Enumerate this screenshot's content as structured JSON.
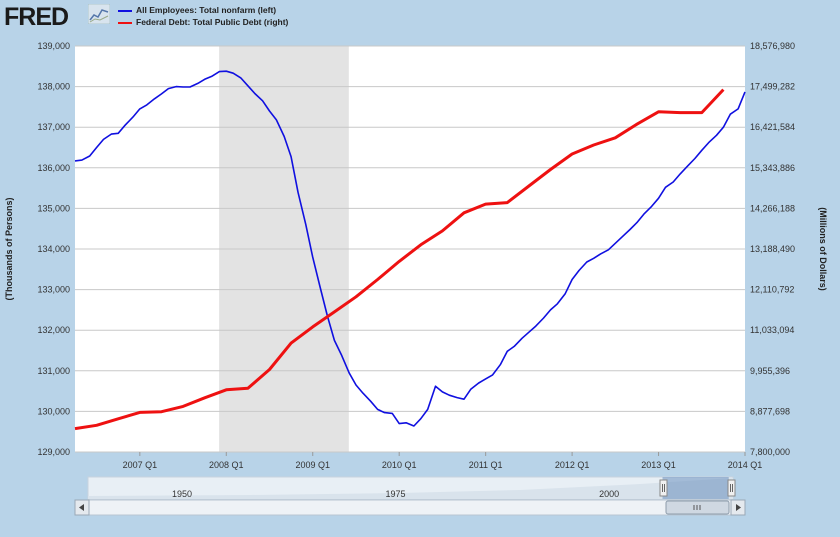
{
  "header": {
    "logo": "FRED",
    "logo_icon": "chart-line-icon"
  },
  "legend": [
    {
      "label": "All Employees: Total nonfarm (left)",
      "color": "#1010e0"
    },
    {
      "label": "Federal Debt: Total Public Debt (right)",
      "color": "#ee1111"
    }
  ],
  "chart_data": {
    "type": "line",
    "y_left_label": "(Thousands of Persons)",
    "y_right_label": "(Millions of Dollars)",
    "y_left_range": [
      129000,
      139000
    ],
    "y_right_range": [
      7800000,
      18576980
    ],
    "y_left_ticks": [
      "139,000",
      "138,000",
      "137,000",
      "136,000",
      "135,000",
      "134,000",
      "133,000",
      "132,000",
      "131,000",
      "130,000",
      "129,000"
    ],
    "y_right_ticks": [
      "18,576,980",
      "17,499,282",
      "16,421,584",
      "15,343,886",
      "14,266,188",
      "13,188,490",
      "12,110,792",
      "11,033,094",
      "9,955,396",
      "8,877,698",
      "7,800,000"
    ],
    "x_range": [
      2006.25,
      2014.0
    ],
    "x_ticks": [
      {
        "label": "2007 Q1",
        "value": 2007.0
      },
      {
        "label": "2008 Q1",
        "value": 2008.0
      },
      {
        "label": "2009 Q1",
        "value": 2009.0
      },
      {
        "label": "2010 Q1",
        "value": 2010.0
      },
      {
        "label": "2011 Q1",
        "value": 2011.0
      },
      {
        "label": "2012 Q1",
        "value": 2012.0
      },
      {
        "label": "2013 Q1",
        "value": 2013.0
      },
      {
        "label": "2014 Q1",
        "value": 2014.0
      }
    ],
    "recession": [
      2007.917,
      2009.417
    ],
    "grid": true,
    "series": [
      {
        "name": "All Employees: Total nonfarm (left)",
        "color": "#1010e0",
        "axis": "left",
        "points": [
          [
            2006.25,
            136170
          ],
          [
            2006.33,
            136190
          ],
          [
            2006.42,
            136290
          ],
          [
            2006.5,
            136500
          ],
          [
            2006.58,
            136700
          ],
          [
            2006.67,
            136830
          ],
          [
            2006.75,
            136850
          ],
          [
            2006.83,
            137050
          ],
          [
            2006.92,
            137250
          ],
          [
            2007.0,
            137450
          ],
          [
            2007.08,
            137550
          ],
          [
            2007.17,
            137700
          ],
          [
            2007.25,
            137820
          ],
          [
            2007.33,
            137950
          ],
          [
            2007.42,
            138000
          ],
          [
            2007.5,
            137990
          ],
          [
            2007.58,
            137990
          ],
          [
            2007.67,
            138080
          ],
          [
            2007.75,
            138180
          ],
          [
            2007.83,
            138250
          ],
          [
            2007.92,
            138370
          ],
          [
            2008.0,
            138380
          ],
          [
            2008.08,
            138330
          ],
          [
            2008.17,
            138210
          ],
          [
            2008.25,
            138020
          ],
          [
            2008.33,
            137830
          ],
          [
            2008.42,
            137650
          ],
          [
            2008.5,
            137400
          ],
          [
            2008.58,
            137180
          ],
          [
            2008.67,
            136770
          ],
          [
            2008.75,
            136270
          ],
          [
            2008.83,
            135400
          ],
          [
            2008.92,
            134600
          ],
          [
            2009.0,
            133800
          ],
          [
            2009.08,
            133100
          ],
          [
            2009.17,
            132350
          ],
          [
            2009.25,
            131750
          ],
          [
            2009.33,
            131400
          ],
          [
            2009.42,
            130950
          ],
          [
            2009.5,
            130650
          ],
          [
            2009.58,
            130450
          ],
          [
            2009.67,
            130250
          ],
          [
            2009.75,
            130050
          ],
          [
            2009.83,
            129970
          ],
          [
            2009.92,
            129950
          ],
          [
            2010.0,
            129700
          ],
          [
            2010.08,
            129720
          ],
          [
            2010.17,
            129640
          ],
          [
            2010.25,
            129820
          ],
          [
            2010.33,
            130050
          ],
          [
            2010.42,
            130620
          ],
          [
            2010.5,
            130480
          ],
          [
            2010.58,
            130400
          ],
          [
            2010.67,
            130340
          ],
          [
            2010.75,
            130300
          ],
          [
            2010.83,
            130550
          ],
          [
            2010.92,
            130700
          ],
          [
            2011.0,
            130800
          ],
          [
            2011.08,
            130900
          ],
          [
            2011.17,
            131150
          ],
          [
            2011.25,
            131480
          ],
          [
            2011.33,
            131600
          ],
          [
            2011.42,
            131800
          ],
          [
            2011.5,
            131950
          ],
          [
            2011.58,
            132100
          ],
          [
            2011.67,
            132300
          ],
          [
            2011.75,
            132500
          ],
          [
            2011.83,
            132650
          ],
          [
            2011.92,
            132900
          ],
          [
            2012.0,
            133250
          ],
          [
            2012.08,
            133470
          ],
          [
            2012.17,
            133680
          ],
          [
            2012.25,
            133770
          ],
          [
            2012.33,
            133880
          ],
          [
            2012.42,
            133980
          ],
          [
            2012.5,
            134140
          ],
          [
            2012.58,
            134300
          ],
          [
            2012.67,
            134480
          ],
          [
            2012.75,
            134650
          ],
          [
            2012.83,
            134860
          ],
          [
            2012.92,
            135050
          ],
          [
            2013.0,
            135250
          ],
          [
            2013.08,
            135520
          ],
          [
            2013.17,
            135650
          ],
          [
            2013.25,
            135850
          ],
          [
            2013.33,
            136030
          ],
          [
            2013.42,
            136230
          ],
          [
            2013.5,
            136430
          ],
          [
            2013.58,
            136620
          ],
          [
            2013.67,
            136800
          ],
          [
            2013.75,
            137000
          ],
          [
            2013.83,
            137320
          ],
          [
            2013.92,
            137450
          ],
          [
            2014.0,
            137870
          ]
        ]
      },
      {
        "name": "Federal Debt: Total Public Debt (right)",
        "color": "#ee1111",
        "axis": "right",
        "points": [
          [
            2006.25,
            8420000
          ],
          [
            2006.5,
            8510000
          ],
          [
            2006.75,
            8680000
          ],
          [
            2007.0,
            8850000
          ],
          [
            2007.25,
            8870000
          ],
          [
            2007.5,
            9010000
          ],
          [
            2007.75,
            9240000
          ],
          [
            2008.0,
            9450000
          ],
          [
            2008.25,
            9490000
          ],
          [
            2008.5,
            9990000
          ],
          [
            2008.75,
            10690000
          ],
          [
            2009.0,
            11120000
          ],
          [
            2009.25,
            11520000
          ],
          [
            2009.5,
            11920000
          ],
          [
            2009.75,
            12380000
          ],
          [
            2010.0,
            12860000
          ],
          [
            2010.25,
            13300000
          ],
          [
            2010.5,
            13670000
          ],
          [
            2010.75,
            14150000
          ],
          [
            2011.0,
            14380000
          ],
          [
            2011.25,
            14420000
          ],
          [
            2011.5,
            14860000
          ],
          [
            2011.75,
            15300000
          ],
          [
            2012.0,
            15710000
          ],
          [
            2012.25,
            15950000
          ],
          [
            2012.5,
            16140000
          ],
          [
            2012.75,
            16500000
          ],
          [
            2013.0,
            16830000
          ],
          [
            2013.25,
            16810000
          ],
          [
            2013.5,
            16810000
          ],
          [
            2013.75,
            17420000
          ]
        ]
      }
    ]
  },
  "navigator": {
    "labels": [
      {
        "label": "1950",
        "value": 1950
      },
      {
        "label": "1975",
        "value": 1975
      },
      {
        "label": "2000",
        "value": 2000
      }
    ],
    "range": [
      1939,
      2014.5
    ],
    "selection": [
      2006.25,
      2014.0
    ],
    "scroll_left_icon": "arrow-left-icon",
    "scroll_right_icon": "arrow-right-icon",
    "grip_icon": "grip-icon"
  }
}
